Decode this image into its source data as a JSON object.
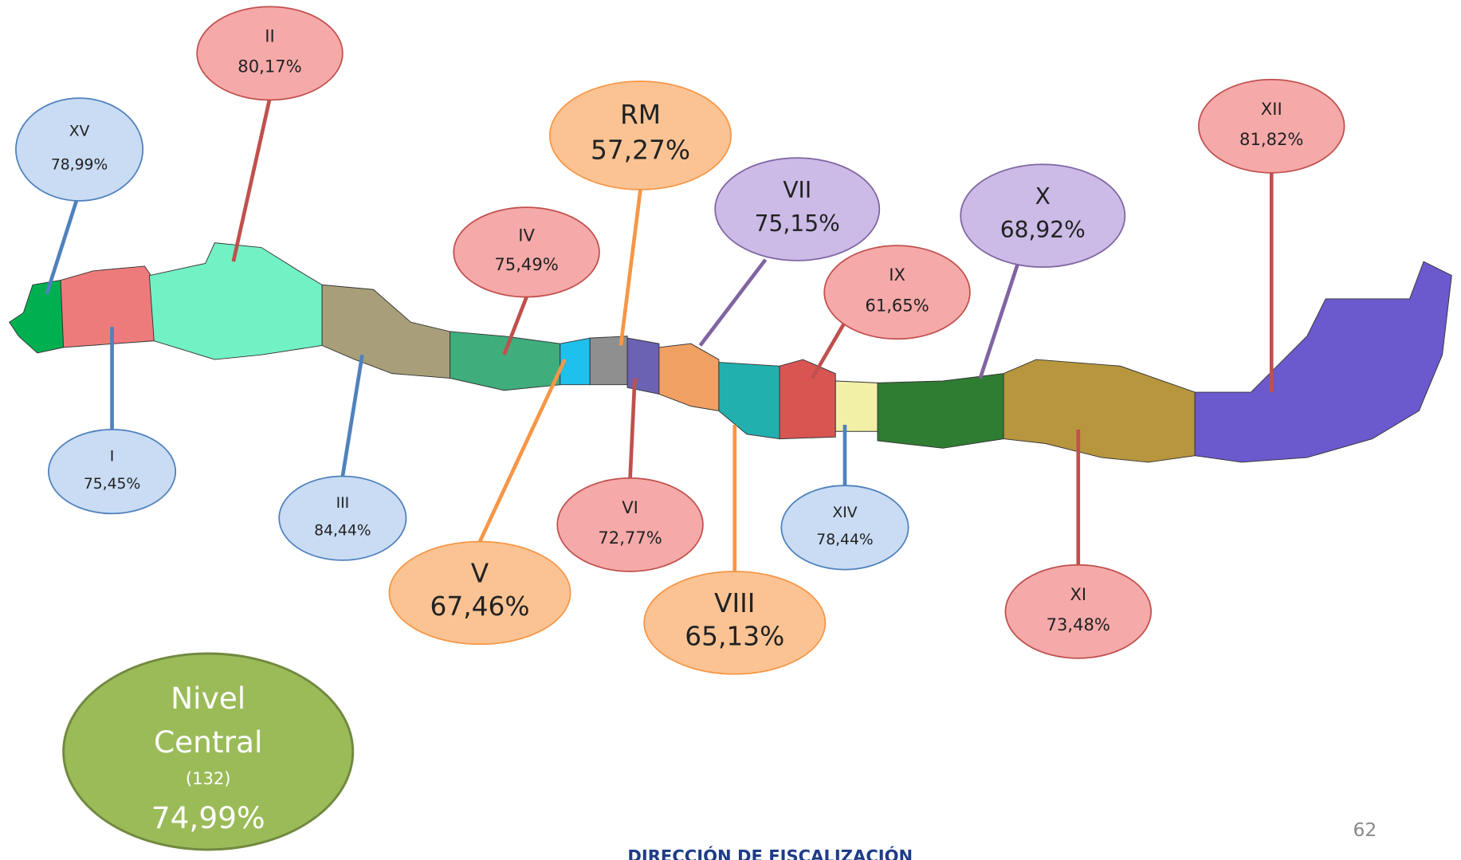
{
  "regions": [
    {
      "label": "XV",
      "value": "78,99%"
    },
    {
      "label": "II",
      "value": "80,17%"
    },
    {
      "label": "I",
      "value": "75,45%"
    },
    {
      "label": "III",
      "value": "84,44%"
    },
    {
      "label": "IV",
      "value": "75,49%"
    },
    {
      "label": "RM",
      "value": "57,27%"
    },
    {
      "label": "V",
      "value": "67,46%"
    },
    {
      "label": "VI",
      "value": "72,77%"
    },
    {
      "label": "VII",
      "value": "75,15%"
    },
    {
      "label": "VIII",
      "value": "65,13%"
    },
    {
      "label": "IX",
      "value": "61,65%"
    },
    {
      "label": "XIV",
      "value": "78,44%"
    },
    {
      "label": "X",
      "value": "68,92%"
    },
    {
      "label": "XI",
      "value": "73,48%"
    },
    {
      "label": "XII",
      "value": "81,82%"
    }
  ],
  "central": {
    "label": [
      "Nivel",
      "Central"
    ],
    "count": "(132)",
    "value": "74,99%"
  },
  "page_number": "62",
  "footer": "DIRECCIÓN DE FISCALIZACIÓN"
}
